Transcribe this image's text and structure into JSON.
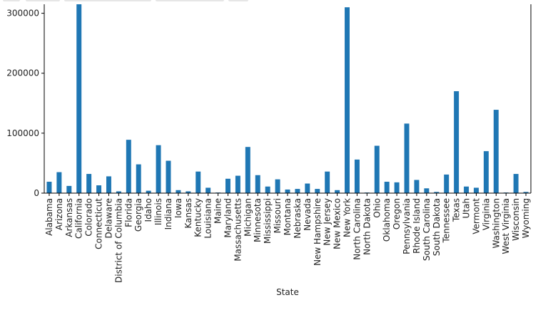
{
  "chart_data": {
    "type": "bar",
    "xlabel": "State",
    "ylabel": "",
    "ylim": [
      0,
      315000
    ],
    "yticks": [
      0,
      100000,
      200000,
      300000
    ],
    "ytick_labels": [
      "0",
      "100000",
      "200000",
      "300000"
    ],
    "bar_color": "#1f77b4",
    "grid": false,
    "categories": [
      "Alabama",
      "Arizona",
      "Arkansas",
      "California",
      "Colorado",
      "Connecticut",
      "Delaware",
      "District of Columbia",
      "Florida",
      "Georgia",
      "Idaho",
      "Illinois",
      "Indiana",
      "Iowa",
      "Kansas",
      "Kentucky",
      "Louisiana",
      "Maine",
      "Maryland",
      "Massachusetts",
      "Michigan",
      "Minnesota",
      "Mississippi",
      "Missouri",
      "Montana",
      "Nebraska",
      "Nevada",
      "New Hampshire",
      "New Jersey",
      "New Mexico",
      "New York",
      "North Carolina",
      "North Dakota",
      "Ohio",
      "Oklahoma",
      "Oregon",
      "Pennsylvania",
      "Rhode Island",
      "South Carolina",
      "South Dakota",
      "Tennessee",
      "Texas",
      "Utah",
      "Vermont",
      "Virginia",
      "Washington",
      "West Virginia",
      "Wisconsin",
      "Wyoming"
    ],
    "values": [
      19000,
      35000,
      12000,
      315000,
      32000,
      13000,
      28000,
      3000,
      89000,
      48000,
      4000,
      80000,
      54000,
      5000,
      3000,
      36000,
      9000,
      1000,
      24000,
      29000,
      77000,
      30000,
      11000,
      23000,
      6000,
      7000,
      16000,
      7000,
      36000,
      5000,
      310000,
      56000,
      1000,
      79000,
      19000,
      18000,
      116000,
      22000,
      8000,
      2000,
      31000,
      170000,
      11000,
      9000,
      70000,
      139000,
      1000,
      32000,
      2000
    ]
  }
}
